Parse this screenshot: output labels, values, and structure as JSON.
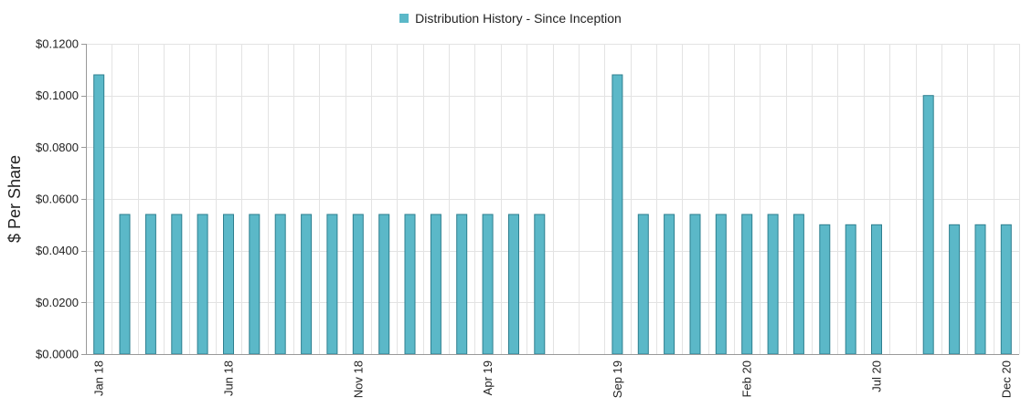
{
  "chart_data": {
    "type": "bar",
    "legend": {
      "label": "Distribution History - Since Inception",
      "position": "top-center"
    },
    "ylabel": "$ Per Share",
    "xlabel": "",
    "ylim": [
      0,
      0.12
    ],
    "yticks": [
      0,
      0.02,
      0.04,
      0.06,
      0.08,
      0.1,
      0.12
    ],
    "ytick_labels": [
      "$0.0000",
      "$0.0200",
      "$0.0400",
      "$0.0600",
      "$0.0800",
      "$0.1000",
      "$0.1200"
    ],
    "grid": true,
    "colors": {
      "bar_fill": "#5bb8c8",
      "bar_edge": "#2e7f8f",
      "grid": "#e3e3e3",
      "axis": "#999999"
    },
    "categories": [
      "Jan 18",
      "Feb 18",
      "Mar 18",
      "Apr 18",
      "May 18",
      "Jun 18",
      "Jul 18",
      "Aug 18",
      "Sep 18",
      "Oct 18",
      "Nov 18",
      "Dec 18",
      "Jan 19",
      "Feb 19",
      "Mar 19",
      "Apr 19",
      "May 19",
      "Jun 19",
      "Jul 19",
      "Aug 19",
      "Sep 19",
      "Oct 19",
      "Nov 19",
      "Dec 19",
      "Jan 20",
      "Feb 20",
      "Mar 20",
      "Apr 20",
      "May 20",
      "Jun 20",
      "Jul 20",
      "Aug 20",
      "Sep 20",
      "Oct 20",
      "Nov 20",
      "Dec 20"
    ],
    "values": [
      0.108,
      0.054,
      0.054,
      0.054,
      0.054,
      0.054,
      0.054,
      0.054,
      0.054,
      0.054,
      0.054,
      0.054,
      0.054,
      0.054,
      0.054,
      0.054,
      0.054,
      0.054,
      0,
      0,
      0.108,
      0.054,
      0.054,
      0.054,
      0.054,
      0.054,
      0.054,
      0.054,
      0.05,
      0.05,
      0.05,
      0,
      0.1,
      0.05,
      0.05,
      0.05
    ],
    "xtick_labels": [
      "Jan 18",
      "Jun 18",
      "Nov 18",
      "Apr 19",
      "Sep 19",
      "Feb 20",
      "Jul 20",
      "Dec 20"
    ]
  }
}
